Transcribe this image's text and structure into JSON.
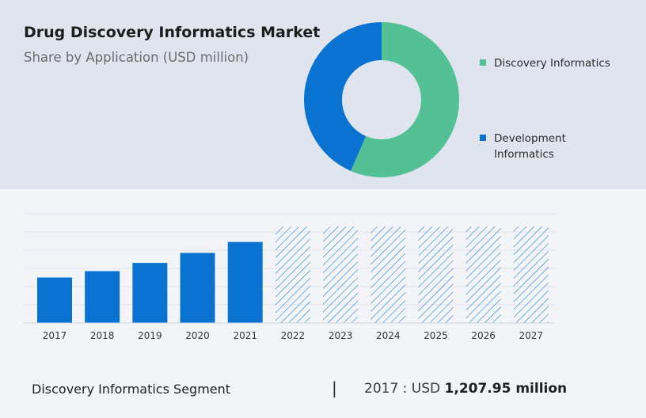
{
  "header": {
    "title": "Drug Discovery Informatics Market",
    "subtitle": "Share by Application (USD million)"
  },
  "colors": {
    "discovery": "#53c095",
    "development": "#0a73d1",
    "bar": "#0a73d1",
    "forecast_hatch": "#2d86d6",
    "grid": "#e2e4ea",
    "top_band": "#dfe4ef",
    "bottom_band": "#f3f4f8"
  },
  "chart_data": [
    {
      "type": "pie",
      "title": "Share by Application (USD million)",
      "donut": true,
      "labels": [
        "Discovery Informatics",
        "Development Informatics"
      ],
      "values": [
        56.5,
        43.5
      ],
      "legend": "right"
    },
    {
      "type": "bar",
      "categories": [
        "2017",
        "2018",
        "2019",
        "2020",
        "2021",
        "2022",
        "2023",
        "2024",
        "2025",
        "2026",
        "2027"
      ],
      "values": [
        2.5,
        2.85,
        3.3,
        3.85,
        4.45,
        5.3,
        5.3,
        5.3,
        5.3,
        5.3,
        5.3
      ],
      "forecast_from": "2022",
      "ylim": [
        0,
        6
      ],
      "grid": true
    }
  ],
  "footer": {
    "segment": "Discovery Informatics Segment",
    "divider": "|",
    "prefix": "2017 : USD",
    "value": "1,207.95 million"
  }
}
